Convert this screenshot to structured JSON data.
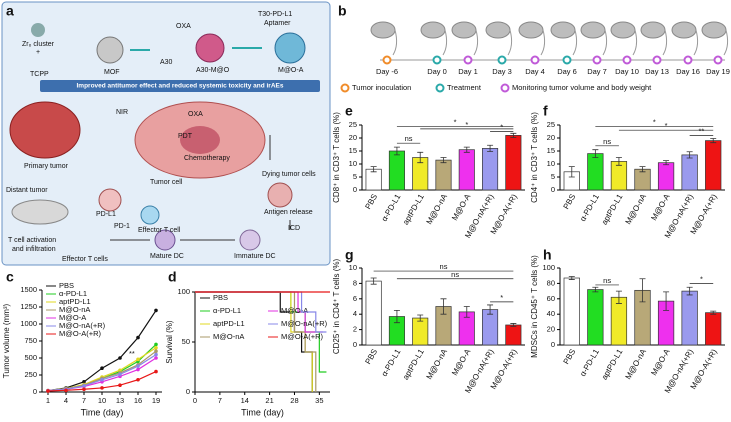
{
  "diagram_a": {
    "panel": "a",
    "labels": [
      "Zr₆ cluster",
      "+",
      "TCPP",
      "MOF",
      "OXA",
      "A30",
      "A30-M@O",
      "T30-PD-L1",
      "Aptamer",
      "M@O-A",
      "Improved antitumor effect and reduced systemic toxicity and irAEs",
      "NIR",
      "OXA",
      "PDT",
      "Chemotherapy",
      "Primary tumor",
      "Tumor cell",
      "Dying tumor cells",
      "Distant tumor",
      "PD-L1",
      "PD-1",
      "Effector T cell",
      "Antigen release",
      "ICD",
      "T cell activation",
      "and infiltration",
      "Effector T cells",
      "Mature DC",
      "Immature DC"
    ]
  },
  "timeline_b": {
    "panel": "b",
    "days": [
      "Day -6",
      "Day 0",
      "Day 1",
      "Day 3",
      "Day 4",
      "Day 6",
      "Day 7",
      "Day 10",
      "Day 13",
      "Day 16",
      "Day 19"
    ],
    "day_colors": [
      "#f08c2a",
      "#2aa9a9",
      "#c05ad8",
      "#2aa9a9",
      "#c05ad8",
      "#2aa9a9",
      "#c05ad8",
      "#c05ad8",
      "#c05ad8",
      "#c05ad8",
      "#c05ad8"
    ],
    "legend": [
      {
        "name": "Tumor inoculation",
        "color": "#f08c2a"
      },
      {
        "name": "Treatment",
        "color": "#2aa9a9"
      },
      {
        "name": "Monitoring tumor volume and body weight",
        "color": "#c05ad8"
      }
    ]
  },
  "chart_data": [
    {
      "panel": "c",
      "type": "line",
      "x_label": "Time (day)",
      "y_label": "Tumor volume (mm³)",
      "x": [
        1,
        4,
        7,
        10,
        13,
        16,
        19
      ],
      "xlim": [
        0,
        20
      ],
      "xticks": [
        1,
        4,
        7,
        10,
        13,
        16,
        19
      ],
      "ylim": [
        0,
        1500
      ],
      "yticks": [
        0,
        250,
        500,
        750,
        1000,
        1250,
        1500
      ],
      "annotation": "**",
      "series": [
        {
          "name": "PBS",
          "color": "#111111",
          "values": [
            20,
            60,
            150,
            350,
            500,
            800,
            1200
          ]
        },
        {
          "name": "α-PD-L1",
          "color": "#22cc22",
          "values": [
            20,
            50,
            100,
            200,
            300,
            450,
            700
          ]
        },
        {
          "name": "aptPD-L1",
          "color": "#e0d820",
          "values": [
            20,
            50,
            110,
            220,
            320,
            480,
            650
          ]
        },
        {
          "name": "M@O-nA",
          "color": "#a89868",
          "values": [
            20,
            50,
            100,
            200,
            280,
            400,
            600
          ]
        },
        {
          "name": "M@O-A",
          "color": "#e030e0",
          "values": [
            20,
            40,
            80,
            150,
            230,
            330,
            500
          ]
        },
        {
          "name": "M@O-nA(+R)",
          "color": "#8888e8",
          "values": [
            20,
            40,
            90,
            180,
            260,
            380,
            550
          ]
        },
        {
          "name": "M@O-A(+R)",
          "color": "#e81818",
          "values": [
            15,
            25,
            40,
            60,
            100,
            180,
            300
          ]
        }
      ]
    },
    {
      "panel": "d",
      "type": "step",
      "x_label": "Time (day)",
      "y_label": "Survival (%)",
      "xlim": [
        0,
        38
      ],
      "xticks": [
        0,
        7,
        14,
        21,
        28,
        35
      ],
      "ylim": [
        0,
        100
      ],
      "yticks": [
        0,
        50,
        100
      ],
      "series": [
        {
          "name": "PBS",
          "color": "#111111",
          "x": [
            0,
            24,
            28,
            30,
            33
          ],
          "values": [
            100,
            80,
            60,
            40,
            0
          ]
        },
        {
          "name": "α-PD-L1",
          "color": "#22cc22",
          "x": [
            0,
            27,
            31,
            35,
            37
          ],
          "values": [
            100,
            80,
            60,
            20,
            20
          ]
        },
        {
          "name": "aptPD-L1",
          "color": "#e0d820",
          "x": [
            0,
            27,
            31,
            33
          ],
          "values": [
            100,
            60,
            40,
            0
          ]
        },
        {
          "name": "M@O-nA",
          "color": "#a89868",
          "x": [
            0,
            28,
            31,
            34
          ],
          "values": [
            100,
            60,
            40,
            0
          ]
        },
        {
          "name": "M@O-A",
          "color": "#e030e0",
          "x": [
            0,
            29,
            31,
            36
          ],
          "values": [
            100,
            80,
            60,
            60
          ]
        },
        {
          "name": "M@O-nA(+R)",
          "color": "#8888e8",
          "x": [
            0,
            30,
            34,
            37
          ],
          "values": [
            100,
            80,
            60,
            60
          ]
        },
        {
          "name": "M@O-A(+R)",
          "color": "#e81818",
          "x": [
            0,
            38
          ],
          "values": [
            100,
            100
          ]
        }
      ]
    },
    {
      "panel": "e",
      "type": "bar",
      "y_label": "CD8⁺ in CD3⁺ T cells (%)",
      "categories": [
        "PBS",
        "α-PD-L1",
        "aptPD-L1",
        "M@O-nA",
        "M@O-A",
        "M@O-nA(+R)",
        "M@O-A(+R)"
      ],
      "colors": [
        "#ffffff",
        "#22dd22",
        "#f0ea28",
        "#b8a878",
        "#ee30ee",
        "#9a9aee",
        "#ee1414"
      ],
      "values": [
        8,
        15,
        12.5,
        11.5,
        15.5,
        16,
        21
      ],
      "errors": [
        1,
        1.5,
        2,
        1,
        1,
        1.2,
        0.8
      ],
      "ylim": [
        0,
        25
      ],
      "yticks": [
        0,
        5,
        10,
        15,
        20,
        25
      ],
      "annotations": [
        "ns",
        "*",
        "*",
        "*"
      ]
    },
    {
      "panel": "f",
      "type": "bar",
      "y_label": "CD4⁺ in CD3⁺ T cells (%)",
      "categories": [
        "PBS",
        "α-PD-L1",
        "aptPD-L1",
        "M@O-nA",
        "M@O-A",
        "M@O-nA(+R)",
        "M@O-A(+R)"
      ],
      "colors": [
        "#ffffff",
        "#22dd22",
        "#f0ea28",
        "#b8a878",
        "#ee30ee",
        "#9a9aee",
        "#ee1414"
      ],
      "values": [
        7,
        14,
        11,
        8,
        10.5,
        13.5,
        19
      ],
      "errors": [
        2,
        1.5,
        1.5,
        1,
        0.8,
        1.2,
        0.8
      ],
      "ylim": [
        0,
        25
      ],
      "yticks": [
        0,
        5,
        10,
        15,
        20,
        25
      ],
      "annotations": [
        "ns",
        "*",
        "*",
        "**"
      ]
    },
    {
      "panel": "g",
      "type": "bar",
      "y_label": "CD25⁺ in CD4⁺ T cells (%)",
      "categories": [
        "PBS",
        "α-PD-L1",
        "aptPD-L1",
        "M@O-nA",
        "M@O-A",
        "M@O-nA(+R)",
        "M@O-A(+R)"
      ],
      "colors": [
        "#ffffff",
        "#22dd22",
        "#f0ea28",
        "#b8a878",
        "#ee30ee",
        "#9a9aee",
        "#ee1414"
      ],
      "values": [
        8.3,
        3.7,
        3.5,
        5,
        4.3,
        4.6,
        2.6
      ],
      "errors": [
        0.4,
        0.8,
        0.4,
        1,
        0.7,
        0.6,
        0.2
      ],
      "ylim": [
        0,
        10
      ],
      "yticks": [
        0,
        2,
        4,
        6,
        8,
        10
      ],
      "annotations": [
        "ns",
        "ns",
        "*"
      ]
    },
    {
      "panel": "h",
      "type": "bar",
      "y_label": "MDSCs in CD45⁺ T cells (%)",
      "categories": [
        "PBS",
        "α-PD-L1",
        "aptPD-L1",
        "M@O-nA",
        "M@O-A",
        "M@O-nA(+R)",
        "M@O-A(+R)"
      ],
      "colors": [
        "#ffffff",
        "#22dd22",
        "#f0ea28",
        "#b8a878",
        "#ee30ee",
        "#9a9aee",
        "#ee1414"
      ],
      "values": [
        87,
        72,
        62,
        71,
        57,
        70,
        42
      ],
      "errors": [
        2,
        3,
        8,
        15,
        12,
        5,
        2
      ],
      "ylim": [
        0,
        100
      ],
      "yticks": [
        0,
        20,
        40,
        60,
        80,
        100
      ],
      "annotations": [
        "ns",
        "*"
      ]
    }
  ]
}
